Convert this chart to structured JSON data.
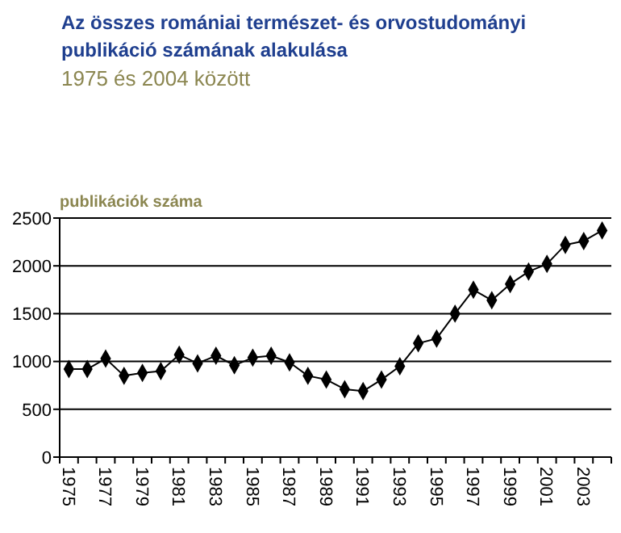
{
  "chart_data": {
    "type": "line",
    "title": "Az összes romániai természet- és orvostudományi publikáció számának alakulása",
    "subtitle": "1975 és 2004 között",
    "ylabel": "publikációk száma",
    "categories": [
      "1975",
      null,
      "1977",
      null,
      "1979",
      null,
      "1981",
      null,
      "1983",
      null,
      "1985",
      null,
      "1987",
      null,
      "1989",
      null,
      "1991",
      null,
      "1993",
      null,
      "1995",
      null,
      "1997",
      null,
      "1999",
      null,
      "2001",
      null,
      "2003",
      null
    ],
    "series": [
      {
        "color": "#000000",
        "values": [
          920,
          920,
          1030,
          850,
          880,
          900,
          1070,
          980,
          1060,
          960,
          1040,
          1060,
          990,
          850,
          810,
          710,
          690,
          810,
          950,
          1190,
          1240,
          1500,
          1750,
          1640,
          1810,
          1940,
          2020,
          2220,
          2260,
          2370
        ]
      }
    ],
    "ylim": [
      0,
      2500
    ],
    "yticks": [
      0,
      500,
      1000,
      1500,
      2000,
      2500
    ],
    "grid": "y",
    "marker": "diamond"
  }
}
